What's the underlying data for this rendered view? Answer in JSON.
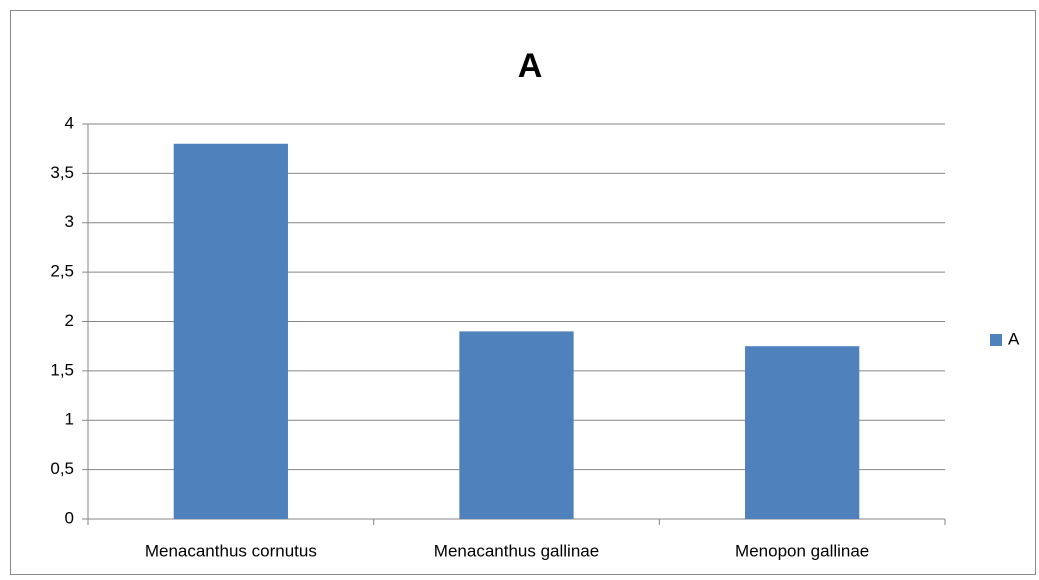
{
  "chart_data": {
    "type": "bar",
    "title": "A",
    "categories": [
      "Menacanthus cornutus",
      "Menacanthus gallinae",
      "Menopon gallinae"
    ],
    "series": [
      {
        "name": "A",
        "color": "#4f81bd",
        "values": [
          3.8,
          1.9,
          1.75
        ]
      }
    ],
    "ylim": [
      0,
      4
    ],
    "yticks": [
      0,
      {
        "value": 0.5,
        "label": "0,5"
      },
      1,
      {
        "value": 1.5,
        "label": "1,5"
      },
      2,
      {
        "value": 2.5,
        "label": "2,5"
      },
      3,
      {
        "value": 3.5,
        "label": "3,5"
      },
      4
    ],
    "grid": true,
    "legend": "right"
  }
}
